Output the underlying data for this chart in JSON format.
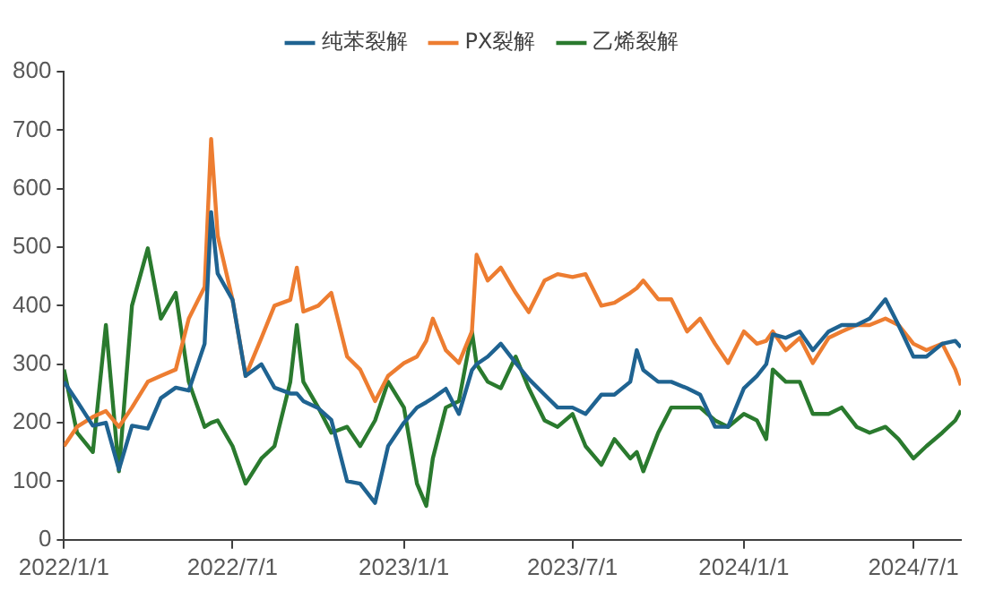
{
  "chart_data": {
    "type": "line",
    "x": [
      "2022-01-01",
      "2022-01-15",
      "2022-02-01",
      "2022-02-15",
      "2022-03-01",
      "2022-03-15",
      "2022-04-01",
      "2022-04-15",
      "2022-05-01",
      "2022-05-15",
      "2022-06-01",
      "2022-06-08",
      "2022-06-15",
      "2022-07-01",
      "2022-07-15",
      "2022-08-01",
      "2022-08-15",
      "2022-09-01",
      "2022-09-08",
      "2022-09-15",
      "2022-10-01",
      "2022-10-15",
      "2022-11-01",
      "2022-11-15",
      "2022-12-01",
      "2022-12-15",
      "2023-01-01",
      "2023-01-15",
      "2023-01-25",
      "2023-02-01",
      "2023-02-15",
      "2023-03-01",
      "2023-03-15",
      "2023-03-20",
      "2023-04-01",
      "2023-04-15",
      "2023-05-01",
      "2023-05-15",
      "2023-06-01",
      "2023-06-15",
      "2023-07-01",
      "2023-07-15",
      "2023-08-01",
      "2023-08-15",
      "2023-09-01",
      "2023-09-08",
      "2023-09-15",
      "2023-10-01",
      "2023-10-15",
      "2023-11-01",
      "2023-11-15",
      "2023-12-01",
      "2023-12-15",
      "2024-01-01",
      "2024-01-15",
      "2024-01-25",
      "2024-02-01",
      "2024-02-15",
      "2024-03-01",
      "2024-03-15",
      "2024-04-01",
      "2024-04-15",
      "2024-05-01",
      "2024-05-15",
      "2024-06-01",
      "2024-06-15",
      "2024-07-01",
      "2024-07-15",
      "2024-08-01",
      "2024-08-15",
      "2024-08-21"
    ],
    "series": [
      {
        "name": "纯苯裂解",
        "color": "#1f6391",
        "values": [
          270,
          237,
          195,
          200,
          120,
          195,
          190,
          242,
          260,
          255,
          335,
          560,
          455,
          410,
          280,
          300,
          260,
          250,
          250,
          237,
          225,
          205,
          100,
          96,
          63,
          160,
          200,
          226,
          235,
          242,
          258,
          215,
          290,
          300,
          313,
          335,
          302,
          275,
          248,
          226,
          226,
          215,
          248,
          248,
          270,
          324,
          290,
          270,
          270,
          259,
          248,
          193,
          193,
          259,
          280,
          300,
          351,
          345,
          356,
          324,
          356,
          367,
          367,
          378,
          411,
          367,
          313,
          313,
          335,
          340,
          329
        ]
      },
      {
        "name": "PX裂解",
        "color": "#ed7d31",
        "values": [
          160,
          193,
          210,
          220,
          193,
          226,
          270,
          280,
          291,
          378,
          432,
          685,
          520,
          410,
          280,
          345,
          400,
          410,
          465,
          390,
          400,
          422,
          313,
          291,
          237,
          280,
          302,
          313,
          340,
          378,
          324,
          302,
          356,
          487,
          443,
          465,
          422,
          389,
          443,
          454,
          449,
          454,
          400,
          405,
          422,
          430,
          443,
          411,
          411,
          356,
          378,
          335,
          302,
          356,
          335,
          340,
          356,
          324,
          345,
          302,
          345,
          356,
          367,
          367,
          378,
          367,
          335,
          324,
          335,
          291,
          264
        ]
      },
      {
        "name": "乙烯裂解",
        "color": "#2a7a2e",
        "values": [
          291,
          183,
          150,
          367,
          117,
          400,
          498,
          378,
          422,
          270,
          193,
          200,
          204,
          160,
          96,
          139,
          160,
          270,
          367,
          270,
          226,
          183,
          193,
          160,
          204,
          270,
          226,
          96,
          58,
          139,
          226,
          237,
          356,
          300,
          270,
          259,
          313,
          259,
          204,
          193,
          215,
          160,
          128,
          172,
          139,
          150,
          117,
          183,
          226,
          226,
          226,
          204,
          193,
          215,
          204,
          172,
          291,
          270,
          270,
          215,
          215,
          226,
          193,
          183,
          193,
          172,
          139,
          160,
          183,
          204,
          221
        ]
      }
    ],
    "xlim": [
      "2022-01-01",
      "2024-08-21"
    ],
    "xticks": [
      {
        "value": "2022-01-01",
        "label": "2022/1/1"
      },
      {
        "value": "2022-07-01",
        "label": "2022/7/1"
      },
      {
        "value": "2023-01-01",
        "label": "2023/1/1"
      },
      {
        "value": "2023-07-01",
        "label": "2023/7/1"
      },
      {
        "value": "2024-01-01",
        "label": "2024/1/1"
      },
      {
        "value": "2024-07-01",
        "label": "2024/7/1"
      }
    ],
    "ylim": [
      0,
      800
    ],
    "yticks": [
      0,
      100,
      200,
      300,
      400,
      500,
      600,
      700,
      800
    ],
    "grid": false,
    "legend": "top",
    "marker": "none",
    "line_style": "solid"
  }
}
